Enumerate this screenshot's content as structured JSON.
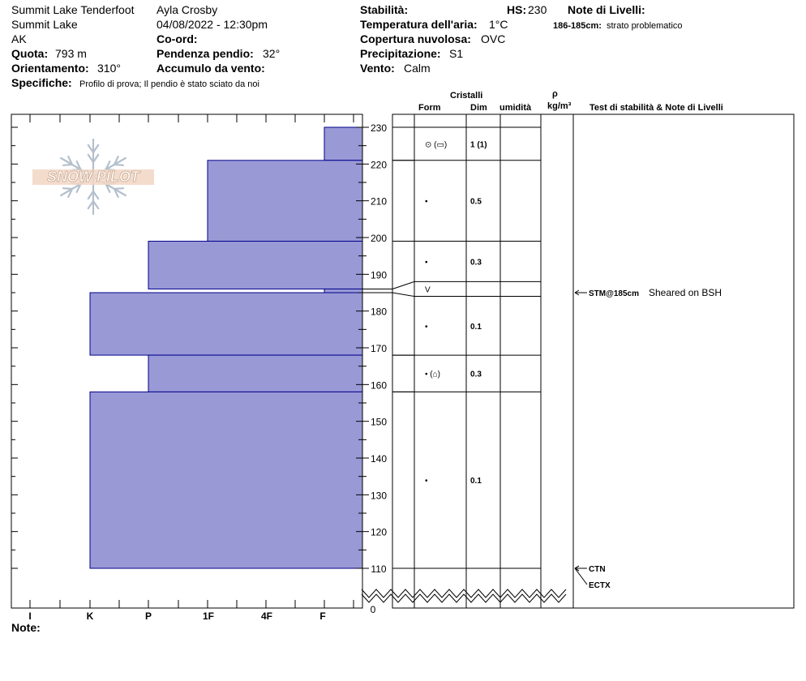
{
  "header": {
    "location": "Summit Lake Tenderfoot",
    "area": "Summit Lake",
    "state": "AK",
    "elevation_label": "Quota:",
    "elevation_value": "793 m",
    "aspect_label": "Orientamento:",
    "aspect_value": "310°",
    "specifics_label": "Specifiche:",
    "specifics_value": "Profilo di prova;  Il pendio è stato sciato da noi",
    "observer": "Ayla Crosby",
    "datetime": "04/08/2022 - 12:30pm",
    "coord_label": "Co-ord:",
    "slope_label": "Pendenza pendio:",
    "slope_value": "32°",
    "wind_loading_label": "Accumulo da vento:",
    "stability_label": "Stabilità:",
    "air_temp_label": "Temperatura dell'aria:",
    "air_temp_value": "1°C",
    "sky_label": "Copertura nuvolosa:",
    "sky_value": "OVC",
    "precip_label": "Precipitazione:",
    "precip_value": "S1",
    "wind_label": "Vento:",
    "wind_value": "Calm",
    "hs_label": "HS:",
    "hs_value": "230",
    "layer_notes_label": "Note di Livelli:",
    "layer_note_range": "186-185cm:",
    "layer_note_text": "strato problematico"
  },
  "columns": {
    "crystals": "Cristalli",
    "form": "Form",
    "size": "Dim",
    "moisture": "umidità",
    "density_symbol": "ρ",
    "density_unit": "kg/m³",
    "tests": "Test di stabilità & Note di Livelli"
  },
  "notes_label": "Note:",
  "logo_text": "SNOW PILOT",
  "colors": {
    "hardness_fill": "#9999d6",
    "hardness_stroke": "#00008b"
  },
  "chart_data": {
    "type": "bar",
    "orientation": "horizontal",
    "y_axis": {
      "label": "",
      "ticks": [
        110,
        120,
        130,
        140,
        150,
        160,
        170,
        180,
        190,
        200,
        210,
        220,
        230
      ],
      "break_value": 0
    },
    "x_axis": {
      "ticks": [
        "I",
        "K",
        "P",
        "1F",
        "4F",
        "F"
      ]
    },
    "hardness_layers": [
      {
        "top": 230,
        "bottom": 221,
        "hardness": "F"
      },
      {
        "top": 221,
        "bottom": 199,
        "hardness": "1F"
      },
      {
        "top": 199,
        "bottom": 186,
        "hardness": "P"
      },
      {
        "top": 186,
        "bottom": 185,
        "hardness": "F"
      },
      {
        "top": 185,
        "bottom": 168,
        "hardness": "K"
      },
      {
        "top": 168,
        "bottom": 158,
        "hardness": "P"
      },
      {
        "top": 158,
        "bottom": 110,
        "hardness": "K"
      }
    ],
    "crystal_layers": [
      {
        "top": 230,
        "bottom": 221,
        "form": "⊙ (▭)",
        "size": "1 (1)"
      },
      {
        "top": 221,
        "bottom": 199,
        "form": "•",
        "size": "0.5"
      },
      {
        "top": 199,
        "bottom": 188,
        "form": "•",
        "size": "0.3"
      },
      {
        "top": 188,
        "bottom": 184,
        "form": "V",
        "size": ""
      },
      {
        "top": 184,
        "bottom": 168,
        "form": "•",
        "size": "0.1"
      },
      {
        "top": 168,
        "bottom": 158,
        "form": "• (⌂)",
        "size": "0.3"
      },
      {
        "top": 158,
        "bottom": 110,
        "form": "•",
        "size": "0.1"
      }
    ],
    "tests": [
      {
        "depth": 185,
        "label": "STM@185cm",
        "note": "Sheared on BSH"
      },
      {
        "depth": 110,
        "label": "CTN",
        "note": ""
      },
      {
        "depth": 110,
        "label": "ECTX",
        "note": ""
      }
    ]
  }
}
